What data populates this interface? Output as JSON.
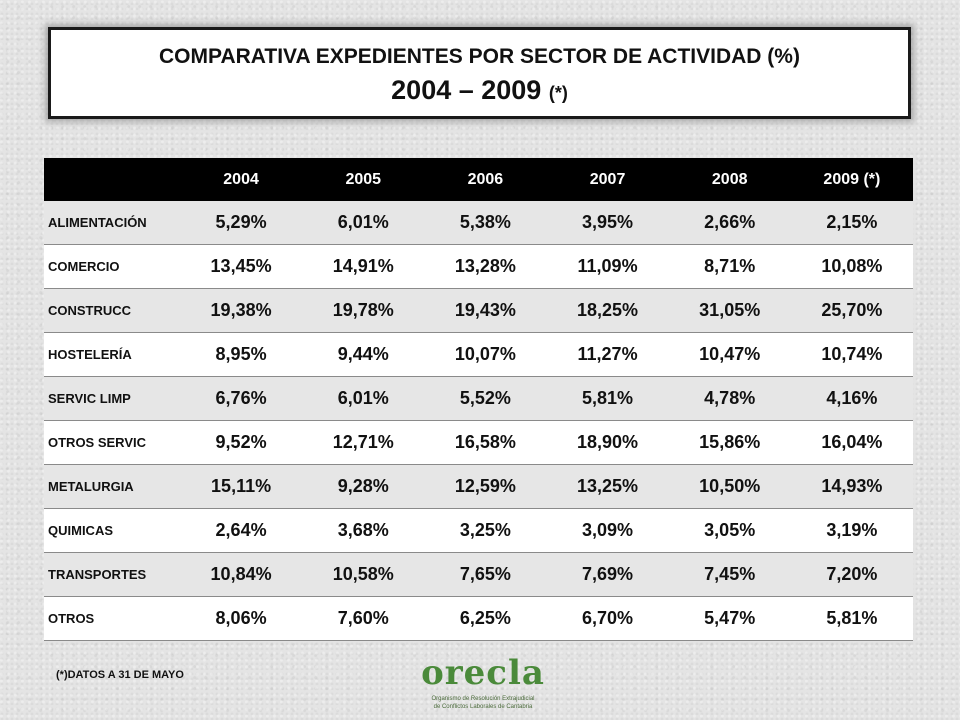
{
  "title": {
    "line1": "COMPARATIVA EXPEDIENTES POR SECTOR DE ACTIVIDAD (%)",
    "line2": "2004 – 2009",
    "note": "(*)"
  },
  "table": {
    "headers": [
      "",
      "2004",
      "2005",
      "2006",
      "2007",
      "2008",
      "2009 (*)"
    ],
    "rows": [
      {
        "label": "ALIMENTACIÓN",
        "values": [
          "5,29%",
          "6,01%",
          "5,38%",
          "3,95%",
          "2,66%",
          "2,15%"
        ]
      },
      {
        "label": "COMERCIO",
        "values": [
          "13,45%",
          "14,91%",
          "13,28%",
          "11,09%",
          "8,71%",
          "10,08%"
        ]
      },
      {
        "label": "CONSTRUCC",
        "values": [
          "19,38%",
          "19,78%",
          "19,43%",
          "18,25%",
          "31,05%",
          "25,70%"
        ]
      },
      {
        "label": "HOSTELERÍA",
        "values": [
          "8,95%",
          "9,44%",
          "10,07%",
          "11,27%",
          "10,47%",
          "10,74%"
        ]
      },
      {
        "label": "SERVIC LIMP",
        "values": [
          "6,76%",
          "6,01%",
          "5,52%",
          "5,81%",
          "4,78%",
          "4,16%"
        ]
      },
      {
        "label": "OTROS SERVIC",
        "values": [
          "9,52%",
          "12,71%",
          "16,58%",
          "18,90%",
          "15,86%",
          "16,04%"
        ]
      },
      {
        "label": "METALURGIA",
        "values": [
          "15,11%",
          "9,28%",
          "12,59%",
          "13,25%",
          "10,50%",
          "14,93%"
        ]
      },
      {
        "label": "QUIMICAS",
        "values": [
          "2,64%",
          "3,68%",
          "3,25%",
          "3,09%",
          "3,05%",
          "3,19%"
        ]
      },
      {
        "label": "TRANSPORTES",
        "values": [
          "10,84%",
          "10,58%",
          "7,65%",
          "7,69%",
          "7,45%",
          "7,20%"
        ]
      },
      {
        "label": "OTROS",
        "values": [
          "8,06%",
          "7,60%",
          "6,25%",
          "6,70%",
          "5,47%",
          "5,81%"
        ]
      }
    ]
  },
  "footnote": "(*)DATOS A 31 DE MAYO",
  "logo": {
    "word": "orecla",
    "subtitle": "Organismo de Resolución Extrajudicial de Conflictos Laborales de Cantabria"
  },
  "colors": {
    "header_bg": "#000000",
    "band_gray": "#e6e6e6",
    "logo_green": "#4a8a3a"
  }
}
